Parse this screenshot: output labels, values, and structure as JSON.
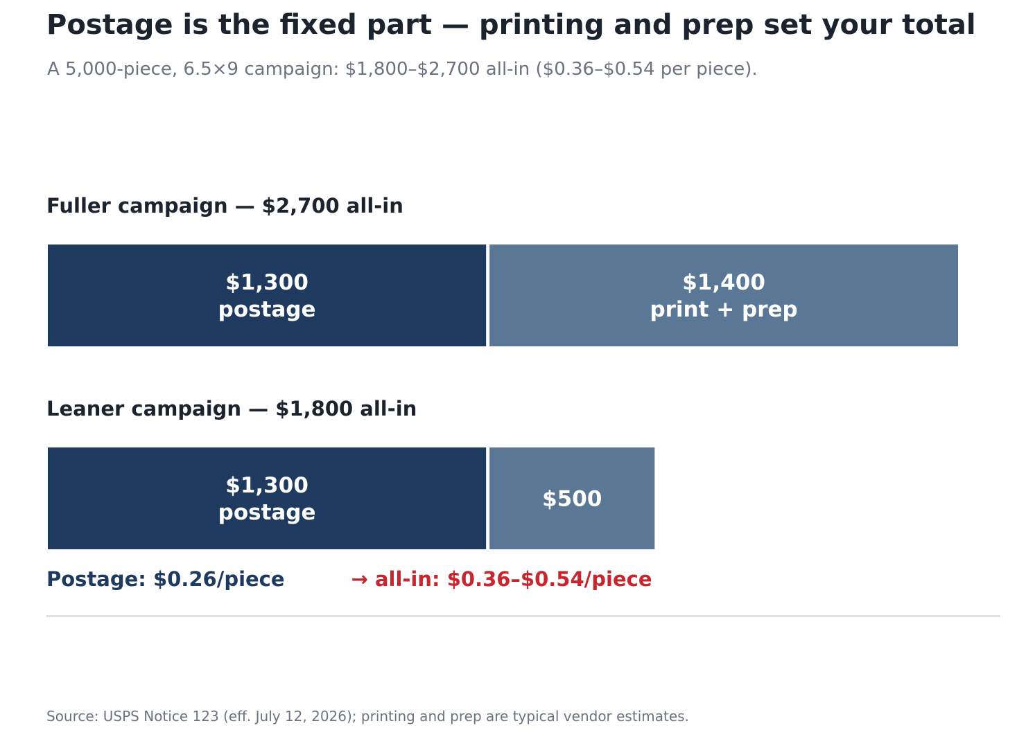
{
  "title": "Postage is the fixed part — printing and prep set your total",
  "subtitle": "A 5,000-piece, 6.5×9 campaign: $1,800–$2,700 all-in ($0.36–$0.54 per piece).",
  "colors": {
    "postage": "#1f3a5f",
    "print_prep": "#5a7896",
    "callout_left": "#1f3a5f",
    "callout_right": "#c8262e"
  },
  "chart_data": {
    "type": "bar",
    "orientation": "horizontal-stacked",
    "xlim": [
      0,
      2700
    ],
    "groups": [
      {
        "label": "Fuller campaign — $2,700 all-in",
        "segments": [
          {
            "name": "postage",
            "value": 1300,
            "label_lines": [
              "$1,300",
              "postage"
            ],
            "color": "#1f3a5f"
          },
          {
            "name": "print + prep",
            "value": 1400,
            "label_lines": [
              "$1,400",
              "print + prep"
            ],
            "color": "#5a7896"
          }
        ]
      },
      {
        "label": "Leaner campaign — $1,800 all-in",
        "segments": [
          {
            "name": "postage",
            "value": 1300,
            "label_lines": [
              "$1,300",
              "postage"
            ],
            "color": "#1f3a5f"
          },
          {
            "name": "print + prep",
            "value": 500,
            "label_lines": [
              "$500"
            ],
            "color": "#5a7896"
          }
        ]
      }
    ]
  },
  "callout": {
    "postage_text": "Postage: $0.26/piece",
    "allin_text": "→  all-in: $0.36–$0.54/piece"
  },
  "source": "Source: USPS Notice 123 (eff. July 12, 2026); printing and prep are typical vendor estimates."
}
